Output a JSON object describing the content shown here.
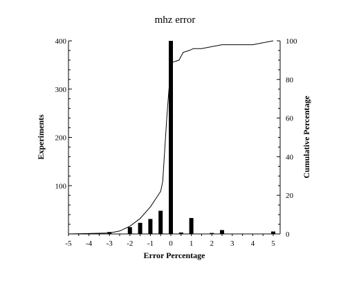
{
  "chart_data": {
    "type": "bar",
    "title": "mhz error",
    "xlabel": "Error Percentage",
    "ylabel": "Experiments",
    "y2label": "Cumulative Percentage",
    "xlim": [
      -5,
      5
    ],
    "ylim": [
      0,
      400
    ],
    "y2lim": [
      0,
      100
    ],
    "x_ticks": [
      -5,
      -4,
      -3,
      -2,
      -1,
      0,
      1,
      2,
      3,
      4,
      5
    ],
    "x_tick_labels": [
      "-5",
      "-4",
      "-3",
      "-2",
      "-1",
      "0",
      "1",
      "2",
      "3",
      "4",
      "5"
    ],
    "y_ticks": [
      100,
      200,
      300,
      400
    ],
    "y_tick_labels": [
      "100",
      "200",
      "300",
      "400"
    ],
    "y2_ticks": [
      0,
      20,
      40,
      60,
      80,
      100
    ],
    "y2_tick_labels": [
      "0",
      "20",
      "40",
      "60",
      "80",
      "100"
    ],
    "grid": false,
    "series": [
      {
        "type": "bar",
        "x": [
          -3.0,
          -2.0,
          -1.5,
          -1.0,
          -0.5,
          0.0,
          0.5,
          1.0,
          2.0,
          2.5,
          5.0
        ],
        "values": [
          4,
          14,
          23,
          31,
          48,
          400,
          3,
          33,
          2,
          8,
          5
        ]
      },
      {
        "type": "line",
        "axis": "right",
        "x": [
          -5.0,
          -3.0,
          -2.5,
          -2.0,
          -1.5,
          -1.0,
          -0.5,
          -0.4,
          -0.2,
          0.0,
          0.1,
          0.4,
          0.6,
          0.9,
          1.1,
          1.5,
          2.0,
          2.5,
          3.0,
          4.0,
          4.5,
          5.0
        ],
        "values": [
          0,
          0.5,
          1.5,
          4,
          8,
          14,
          22,
          27,
          60,
          88,
          89,
          90,
          94,
          95,
          96,
          96,
          97,
          98,
          98,
          98,
          99,
          100
        ]
      }
    ]
  }
}
